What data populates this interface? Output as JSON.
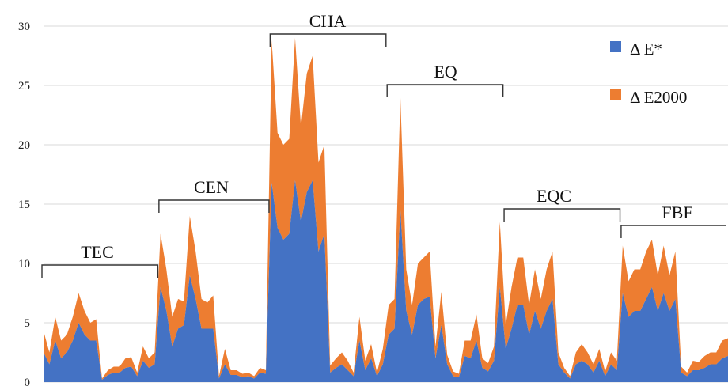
{
  "chart_data": {
    "type": "area",
    "stacked": true,
    "title": "",
    "xlabel": "",
    "ylabel": "",
    "ylim": [
      0,
      30
    ],
    "yticks": [
      "0",
      "5",
      "10",
      "15",
      "20",
      "25",
      "30"
    ],
    "grid": true,
    "legend_position": "top-right",
    "series": [
      {
        "name": "Δ E*",
        "color": "#4472C4",
        "values": [
          2.5,
          1.5,
          3.5,
          2,
          2.5,
          3.5,
          5,
          4,
          3.5,
          3.5,
          0.2,
          0.6,
          0.8,
          0.8,
          1.2,
          1.3,
          0.5,
          1.8,
          1.2,
          1.5,
          8,
          6,
          3,
          4.5,
          4.8,
          9,
          7,
          4.5,
          4.5,
          4.5,
          0.3,
          1.5,
          0.6,
          0.6,
          0.4,
          0.5,
          0.3,
          0.8,
          0.7,
          16.8,
          13,
          12,
          12.5,
          17,
          13.5,
          16,
          17,
          11,
          12.5,
          0.8,
          1.2,
          1.5,
          1,
          0.5,
          3.5,
          1,
          2,
          0.5,
          1.5,
          4,
          4.5,
          14.5,
          6,
          4,
          6.5,
          7,
          7.2,
          2,
          4.8,
          1.5,
          0.5,
          0.4,
          2.2,
          2,
          3.5,
          1.2,
          0.9,
          1.8,
          8,
          2.8,
          4.5,
          6.5,
          6.5,
          4,
          6,
          4.5,
          6,
          7,
          1.5,
          0.8,
          0.3,
          1.5,
          1.8,
          1.5,
          0.8,
          1.8,
          0.5,
          1.5,
          1,
          7.5,
          5.5,
          6,
          6,
          7,
          8,
          6,
          7.5,
          6,
          7,
          0.8,
          0.5,
          1,
          1,
          1.2,
          1.5,
          1.5,
          2,
          2.2
        ]
      },
      {
        "name": "Δ E2000",
        "color": "#ED7D31",
        "values": [
          1.8,
          1,
          2,
          1.5,
          1.5,
          2,
          2.5,
          2,
          1.5,
          1.8,
          0.1,
          0.4,
          0.5,
          0.5,
          0.8,
          0.8,
          0.3,
          1.2,
          0.8,
          1,
          4.5,
          3.5,
          2.5,
          2.5,
          2,
          5,
          4,
          2.5,
          2.2,
          2.8,
          0.2,
          1.3,
          0.4,
          0.4,
          0.3,
          0.3,
          0.2,
          0.4,
          0.3,
          12,
          8,
          8,
          8,
          12,
          8,
          10,
          10.5,
          7.5,
          7.5,
          0.6,
          0.8,
          1,
          0.8,
          0.3,
          2,
          0.8,
          1.2,
          0.3,
          1.3,
          2.5,
          2.5,
          9.5,
          3.5,
          2.5,
          3.5,
          3.5,
          3.8,
          1,
          2.8,
          0.8,
          0.4,
          0.3,
          1.3,
          1.5,
          2.2,
          0.8,
          0.7,
          1.2,
          5.5,
          2,
          3.5,
          4,
          4,
          2.5,
          3.5,
          2.5,
          3.5,
          4,
          1,
          0.4,
          0.2,
          1,
          1.4,
          1,
          0.7,
          1,
          0.4,
          1,
          0.8,
          4,
          3,
          3.5,
          3.5,
          4,
          4,
          3,
          4,
          3,
          4,
          0.5,
          0.3,
          0.8,
          0.7,
          1,
          1,
          1,
          1.5,
          1.5
        ]
      }
    ],
    "annotations": [
      {
        "label": "TEC",
        "start": 0,
        "end": 19
      },
      {
        "label": "CEN",
        "start": 20,
        "end": 38
      },
      {
        "label": "CHA",
        "start": 39,
        "end": 58
      },
      {
        "label": "EQ",
        "start": 59,
        "end": 78
      },
      {
        "label": "EQC",
        "start": 79,
        "end": 98
      },
      {
        "label": "FBF",
        "start": 99,
        "end": 118
      }
    ]
  }
}
